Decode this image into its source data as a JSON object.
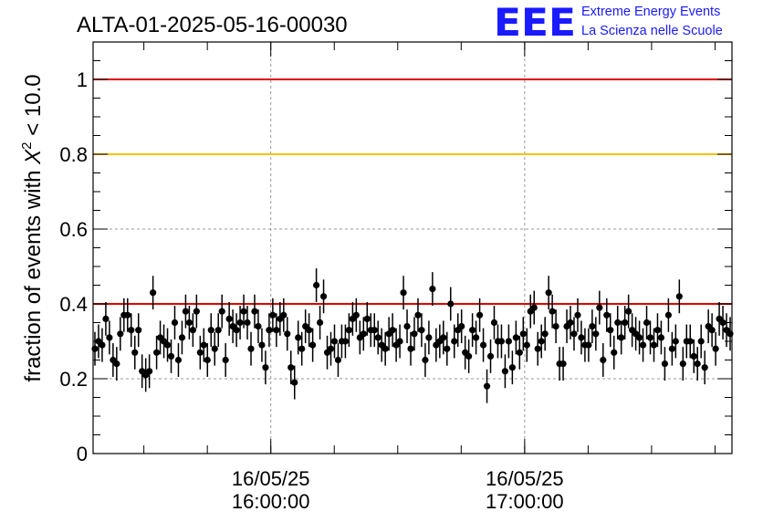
{
  "header": {
    "run_title": "ALTA-01-2025-05-16-00030",
    "logo_letters": "EEE",
    "logo_line1": "Extreme Energy Events",
    "logo_line2": "La Scienza nelle Scuole"
  },
  "colors": {
    "logo_blue": "#1a1aff",
    "line_red": "#e00000",
    "line_gold": "#ffc000",
    "points": "#000000",
    "grid": "#999999"
  },
  "chart_data": {
    "type": "scatter",
    "title": "ALTA-01-2025-05-16-00030",
    "xlabel": "",
    "ylabel_parts": {
      "prefix": "fraction of events with ",
      "symbol": "X",
      "exponent": "2",
      "suffix": " < 10.0"
    },
    "x_range": [
      "16/05/25 15:18:00",
      "16/05/25 17:49:00"
    ],
    "x_ticks": [
      {
        "date": "16/05/25",
        "time": "16:00:00",
        "x": "16/05/25 16:00:00"
      },
      {
        "date": "16/05/25",
        "time": "17:00:00",
        "x": "16/05/25 17:00:00"
      }
    ],
    "ylim": [
      0,
      1.1
    ],
    "y_ticks": [
      {
        "value": 0,
        "label": "0"
      },
      {
        "value": 0.2,
        "label": "0.2"
      },
      {
        "value": 0.4,
        "label": "0.4"
      },
      {
        "value": 0.6,
        "label": "0.6"
      },
      {
        "value": 0.8,
        "label": "0.8"
      },
      {
        "value": 1,
        "label": "1"
      }
    ],
    "grid": true,
    "reference_lines": [
      {
        "y": 1.0,
        "color": "#e00000"
      },
      {
        "y": 0.8,
        "color": "#ffc000"
      },
      {
        "y": 0.4,
        "color": "#e00000"
      }
    ],
    "error_bar": 0.045,
    "series": [
      {
        "values": [
          0.28,
          0.3,
          0.29,
          0.36,
          0.31,
          0.25,
          0.24,
          0.32,
          0.37,
          0.37,
          0.33,
          0.27,
          0.33,
          0.22,
          0.21,
          0.22,
          0.43,
          0.27,
          0.31,
          0.3,
          0.29,
          0.26,
          0.35,
          0.25,
          0.31,
          0.38,
          0.35,
          0.33,
          0.38,
          0.27,
          0.29,
          0.25,
          0.33,
          0.28,
          0.33,
          0.38,
          0.25,
          0.36,
          0.34,
          0.33,
          0.35,
          0.38,
          0.35,
          0.28,
          0.38,
          0.34,
          0.29,
          0.23,
          0.33,
          0.37,
          0.33,
          0.36,
          0.37,
          0.32,
          0.23,
          0.19,
          0.31,
          0.28,
          0.34,
          0.33,
          0.29,
          0.45,
          0.35,
          0.42,
          0.27,
          0.28,
          0.3,
          0.25,
          0.3,
          0.3,
          0.33,
          0.36,
          0.37,
          0.31,
          0.32,
          0.36,
          0.33,
          0.33,
          0.31,
          0.29,
          0.28,
          0.32,
          0.33,
          0.29,
          0.3,
          0.43,
          0.34,
          0.28,
          0.32,
          0.37,
          0.33,
          0.25,
          0.31,
          0.44,
          0.29,
          0.3,
          0.31,
          0.28,
          0.4,
          0.3,
          0.33,
          0.34,
          0.27,
          0.26,
          0.33,
          0.31,
          0.37,
          0.29,
          0.18,
          0.26,
          0.35,
          0.3,
          0.3,
          0.22,
          0.3,
          0.23,
          0.31,
          0.27,
          0.32,
          0.29,
          0.38,
          0.39,
          0.28,
          0.3,
          0.32,
          0.43,
          0.38,
          0.34,
          0.24,
          0.24,
          0.34,
          0.35,
          0.32,
          0.37,
          0.31,
          0.29,
          0.29,
          0.34,
          0.32,
          0.39,
          0.25,
          0.37,
          0.33,
          0.27,
          0.35,
          0.31,
          0.35,
          0.38,
          0.33,
          0.32,
          0.31,
          0.29,
          0.35,
          0.31,
          0.29,
          0.33,
          0.31,
          0.24,
          0.37,
          0.28,
          0.3,
          0.42,
          0.24,
          0.3,
          0.3,
          0.26,
          0.24,
          0.3,
          0.23,
          0.34,
          0.33,
          0.28,
          0.36,
          0.35,
          0.33,
          0.32
        ]
      }
    ]
  }
}
